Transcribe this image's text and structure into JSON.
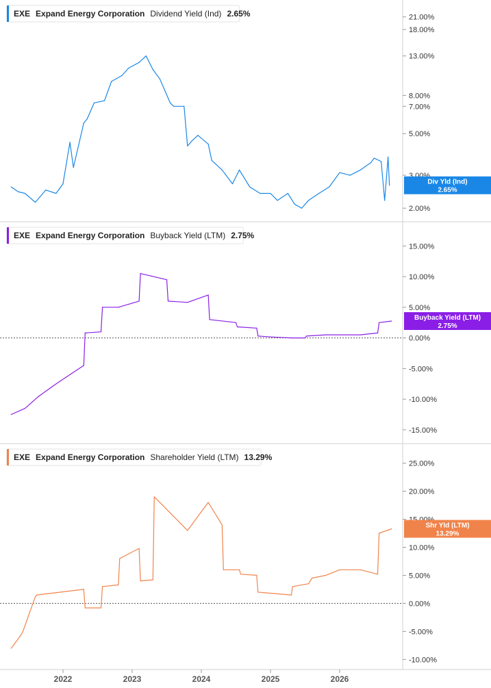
{
  "chart_data": [
    {
      "type": "line",
      "title": "EXE  Expand Energy Corporation  Dividend Yield (Ind)  2.65%",
      "legend": {
        "ticker": "EXE",
        "company": "Expand Energy Corporation",
        "field": "Dividend Yield (Ind)",
        "value": "2.65%"
      },
      "tag": {
        "label": "Div Yld (Ind)",
        "value": "2.65%"
      },
      "color": "#1a87e6",
      "scale": "log",
      "ylim": [
        1.75,
        25
      ],
      "yticks": [
        2,
        3,
        5,
        7,
        8,
        13,
        18,
        21
      ],
      "ytick_labels": [
        "2.00%",
        "3.00%",
        "5.00%",
        "7.00%",
        "8.00%",
        "13.00%",
        "18.00%",
        "21.00%"
      ],
      "x": [
        2021.25,
        2021.35,
        2021.45,
        2021.6,
        2021.75,
        2021.9,
        2022.0,
        2022.1,
        2022.15,
        2022.3,
        2022.35,
        2022.45,
        2022.6,
        2022.7,
        2022.85,
        2022.95,
        2023.1,
        2023.2,
        2023.3,
        2023.4,
        2023.55,
        2023.6,
        2023.75,
        2023.8,
        2023.87,
        2023.95,
        2024.1,
        2024.15,
        2024.3,
        2024.45,
        2024.55,
        2024.7,
        2024.85,
        2025.0,
        2025.1,
        2025.25,
        2025.35,
        2025.45,
        2025.55,
        2025.7,
        2025.85,
        2026.0,
        2026.15,
        2026.3,
        2026.45,
        2026.5,
        2026.6,
        2026.65,
        2026.7,
        2026.72
      ],
      "y": [
        2.6,
        2.45,
        2.4,
        2.15,
        2.5,
        2.4,
        2.7,
        4.5,
        3.3,
        5.7,
        6.0,
        7.3,
        7.5,
        9.5,
        10.2,
        11.2,
        12.0,
        13.0,
        11.0,
        9.8,
        7.3,
        7.0,
        7.0,
        4.3,
        4.6,
        4.9,
        4.4,
        3.6,
        3.2,
        2.7,
        3.2,
        2.6,
        2.4,
        2.4,
        2.2,
        2.4,
        2.1,
        2.0,
        2.2,
        2.4,
        2.6,
        3.1,
        3.0,
        3.2,
        3.5,
        3.7,
        3.55,
        2.2,
        3.75,
        2.65
      ]
    },
    {
      "type": "line",
      "title": "EXE  Expand Energy Corporation  Buyback Yield (LTM)  2.75%",
      "legend": {
        "ticker": "EXE",
        "company": "Expand Energy Corporation",
        "field": "Buyback Yield (LTM)",
        "value": "2.75%"
      },
      "tag": {
        "label": "Buyback Yield (LTM)",
        "value": "2.75%"
      },
      "color": "#8a1ee6",
      "scale": "linear",
      "ylim": [
        -16.8,
        18.5
      ],
      "yticks": [
        -15,
        -10,
        -5,
        0,
        5,
        10,
        15
      ],
      "ytick_labels": [
        "-15.00%",
        "-10.00%",
        "-5.00%",
        "0.00%",
        "5.00%",
        "10.00%",
        "15.00%"
      ],
      "zero_line": true,
      "x": [
        2021.25,
        2021.45,
        2021.65,
        2021.9,
        2022.1,
        2022.3,
        2022.32,
        2022.55,
        2022.57,
        2022.8,
        2023.1,
        2023.12,
        2023.5,
        2023.52,
        2023.8,
        2024.1,
        2024.12,
        2024.5,
        2024.52,
        2024.8,
        2024.82,
        2025.1,
        2025.3,
        2025.5,
        2025.52,
        2025.8,
        2026.3,
        2026.55,
        2026.57,
        2026.75
      ],
      "y": [
        -12.5,
        -11.5,
        -9.5,
        -7.5,
        -6.0,
        -4.5,
        0.8,
        1.0,
        5.0,
        5.0,
        6.0,
        10.5,
        9.5,
        6.0,
        5.8,
        7.0,
        3.0,
        2.5,
        1.8,
        1.6,
        0.3,
        0.1,
        0.0,
        0.0,
        0.3,
        0.5,
        0.5,
        0.8,
        2.5,
        2.75
      ]
    },
    {
      "type": "line",
      "title": "EXE  Expand Energy Corporation  Shareholder Yield (LTM)  13.29%",
      "legend": {
        "ticker": "EXE",
        "company": "Expand Energy Corporation",
        "field": "Shareholder Yield (LTM)",
        "value": "13.29%"
      },
      "tag": {
        "label": "Shr Yld (LTM)",
        "value": "13.29%"
      },
      "color": "#f0834a",
      "scale": "linear",
      "ylim": [
        -11.3,
        28.0
      ],
      "yticks": [
        -10,
        -5,
        0,
        5,
        10,
        15,
        20,
        25
      ],
      "ytick_labels": [
        "-10.00%",
        "-5.00%",
        "0.00%",
        "5.00%",
        "10.00%",
        "15.00%",
        "20.00%",
        "25.00%"
      ],
      "zero_line": true,
      "x": [
        2021.25,
        2021.4,
        2021.42,
        2021.6,
        2021.62,
        2022.3,
        2022.32,
        2022.55,
        2022.57,
        2022.8,
        2022.82,
        2023.1,
        2023.12,
        2023.3,
        2023.32,
        2023.6,
        2023.8,
        2024.1,
        2024.3,
        2024.32,
        2024.55,
        2024.57,
        2024.8,
        2024.82,
        2025.3,
        2025.32,
        2025.55,
        2025.6,
        2025.8,
        2026.0,
        2026.3,
        2026.55,
        2026.57,
        2026.75
      ],
      "y": [
        -8.0,
        -5.5,
        -5.0,
        1.2,
        1.5,
        2.5,
        -0.8,
        -0.8,
        3.0,
        3.3,
        8.0,
        9.8,
        4.0,
        4.2,
        19.0,
        15.5,
        13.0,
        18.0,
        14.0,
        6.0,
        6.0,
        5.2,
        5.0,
        2.0,
        1.5,
        3.0,
        3.5,
        4.5,
        5.0,
        6.0,
        6.0,
        5.2,
        12.5,
        13.29
      ]
    }
  ],
  "x_axis": {
    "ticks": [
      2022,
      2023,
      2024,
      2025,
      2026
    ],
    "labels": [
      "2022",
      "2023",
      "2024",
      "2025",
      "2026"
    ]
  }
}
